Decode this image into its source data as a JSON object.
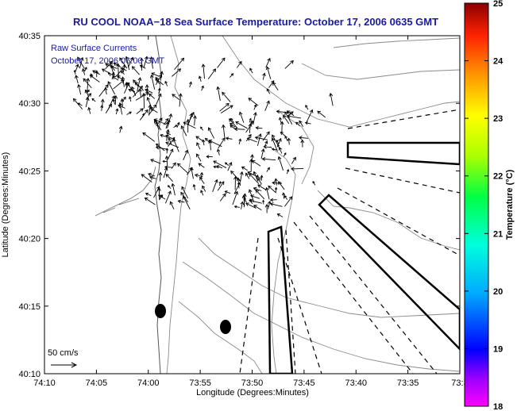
{
  "title": "RU COOL  NOAA−18  Sea Surface Temperature:  October 17, 2006 0635 GMT",
  "legend": {
    "line1": "Raw Surface Currents",
    "line2": "October 17, 2006 06:00 GMT"
  },
  "scale_label": "50 cm/s",
  "xlabel": "Longitude (Degrees:Minutes)",
  "ylabel": "Latitude (Degrees:Minutes)",
  "x_ticks": [
    "74:10",
    "74:05",
    "74:00",
    "73:55",
    "73:50",
    "73:45",
    "73:40",
    "73:35",
    "73:3"
  ],
  "y_ticks": [
    "40:35",
    "40:30",
    "40:25",
    "40:20",
    "40:15",
    "40:10"
  ],
  "colorbar": {
    "label": "Temperature (°C)",
    "ticks": [
      "25",
      "24",
      "23",
      "22",
      "21",
      "20",
      "19",
      "18"
    ],
    "range": [
      18,
      25
    ]
  }
}
